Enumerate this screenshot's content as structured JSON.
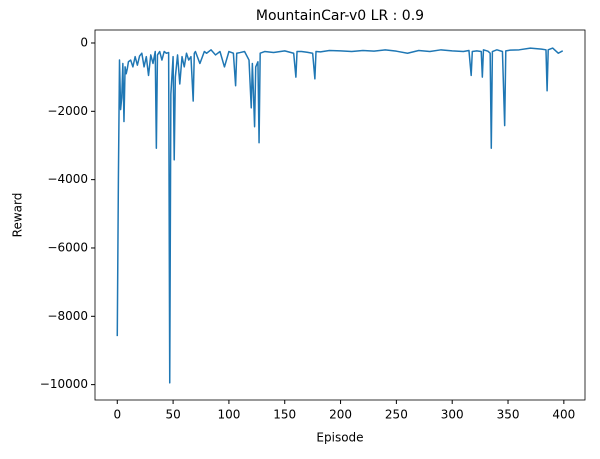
{
  "chart_data": {
    "type": "line",
    "title": "MountainCar-v0 LR : 0.9",
    "x_label": "Episode",
    "y_label": "Reward",
    "color": "#1f77b4",
    "x": [
      0,
      1,
      2,
      3,
      4,
      5,
      6,
      7,
      8,
      9,
      10,
      12,
      14,
      16,
      18,
      20,
      22,
      24,
      26,
      28,
      30,
      32,
      34,
      35,
      36,
      38,
      40,
      42,
      44,
      46,
      47,
      48,
      50,
      51,
      52,
      54,
      56,
      58,
      60,
      62,
      64,
      66,
      68,
      69,
      70,
      74,
      78,
      80,
      84,
      88,
      92,
      96,
      100,
      104,
      106,
      107,
      110,
      114,
      118,
      120,
      121,
      122,
      123,
      124,
      126,
      127,
      128,
      132,
      140,
      150,
      158,
      160,
      161,
      165,
      170,
      175,
      177,
      178,
      182,
      190,
      200,
      210,
      220,
      230,
      240,
      250,
      260,
      270,
      280,
      290,
      300,
      310,
      315,
      317,
      318,
      322,
      326,
      327,
      328,
      332,
      334,
      335,
      336,
      340,
      345,
      347,
      348,
      352,
      360,
      370,
      380,
      384,
      385,
      386,
      390,
      395,
      399
    ],
    "values": [
      -8580,
      -4000,
      -500,
      -1950,
      -1600,
      -600,
      -2300,
      -700,
      -900,
      -750,
      -550,
      -500,
      -700,
      -400,
      -650,
      -380,
      -300,
      -700,
      -400,
      -950,
      -350,
      -600,
      -250,
      -3080,
      -350,
      -250,
      -500,
      -250,
      -300,
      -280,
      -9950,
      -1500,
      -400,
      -3420,
      -1000,
      -350,
      -1200,
      -400,
      -700,
      -300,
      -500,
      -400,
      -1700,
      -300,
      -250,
      -600,
      -250,
      -300,
      -200,
      -350,
      -250,
      -700,
      -250,
      -300,
      -1250,
      -300,
      -280,
      -250,
      -500,
      -1900,
      -600,
      -1500,
      -2450,
      -700,
      -550,
      -2920,
      -300,
      -250,
      -280,
      -230,
      -300,
      -1000,
      -250,
      -250,
      -270,
      -300,
      -1050,
      -250,
      -260,
      -220,
      -230,
      -250,
      -220,
      -240,
      -200,
      -240,
      -300,
      -220,
      -250,
      -200,
      -230,
      -250,
      -220,
      -950,
      -250,
      -230,
      -250,
      -1000,
      -200,
      -240,
      -300,
      -3080,
      -250,
      -200,
      -250,
      -2420,
      -230,
      -210,
      -200,
      -150,
      -180,
      -200,
      -1400,
      -200,
      -150,
      -300,
      -230
    ],
    "xlim": [
      -19.95,
      418.95
    ],
    "ylim": [
      -10450,
      380
    ],
    "xticks": [
      0,
      50,
      100,
      150,
      200,
      250,
      300,
      350,
      400
    ],
    "yticks": [
      {
        "value": -10000,
        "label": "−10000"
      },
      {
        "value": -8000,
        "label": "−8000"
      },
      {
        "value": -6000,
        "label": "−6000"
      },
      {
        "value": -4000,
        "label": "−4000"
      },
      {
        "value": -2000,
        "label": "−2000"
      },
      0
    ]
  }
}
